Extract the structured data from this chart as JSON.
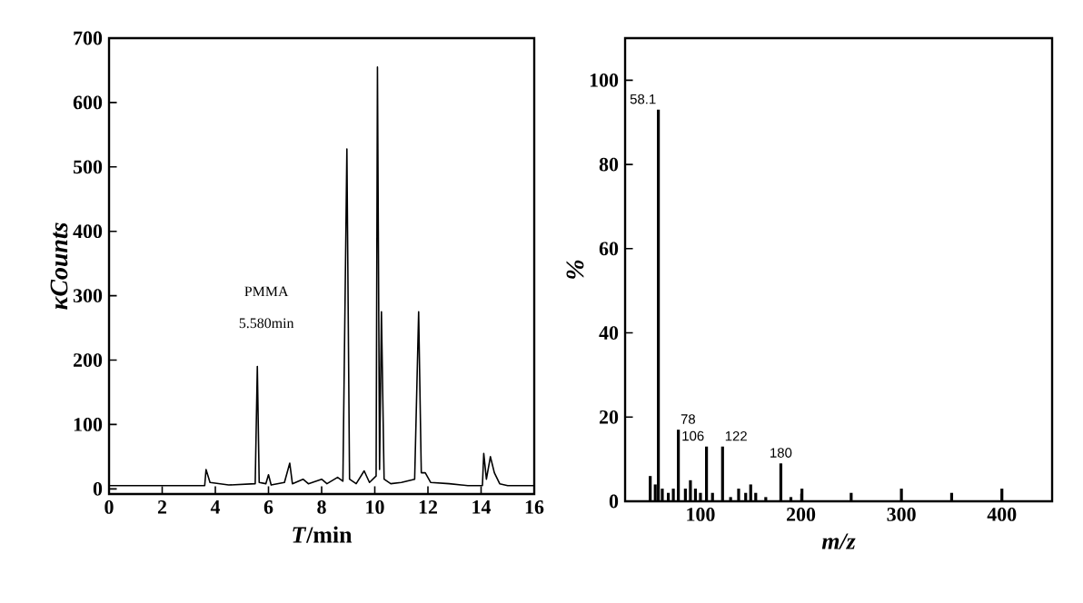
{
  "chart_data": [
    {
      "type": "line",
      "xlabel": "*T*/min",
      "ylabel": "κCounts",
      "color": "#000000",
      "x": [
        0,
        3,
        3.6,
        3.65,
        3.8,
        4.5,
        5.5,
        5.58,
        5.65,
        5.9,
        6.0,
        6.1,
        6.6,
        6.8,
        6.9,
        7.3,
        7.5,
        8.0,
        8.2,
        8.6,
        8.8,
        8.95,
        9.05,
        9.3,
        9.6,
        9.8,
        10.05,
        10.1,
        10.18,
        10.25,
        10.35,
        10.6,
        11.0,
        11.5,
        11.65,
        11.75,
        11.9,
        12.1,
        12.8,
        13.5,
        14.05,
        14.1,
        14.2,
        14.35,
        14.5,
        14.7,
        15,
        16
      ],
      "values": [
        5,
        5,
        5,
        30,
        10,
        6,
        8,
        190,
        10,
        8,
        22,
        6,
        10,
        40,
        8,
        15,
        8,
        15,
        8,
        18,
        12,
        528,
        15,
        8,
        28,
        10,
        20,
        655,
        30,
        275,
        15,
        8,
        10,
        15,
        275,
        25,
        25,
        10,
        8,
        5,
        5,
        55,
        15,
        50,
        25,
        8,
        5,
        5
      ],
      "xlim": [
        0,
        16
      ],
      "ylim": [
        -8,
        700
      ],
      "xticks": [
        0,
        2,
        4,
        6,
        8,
        10,
        12,
        14,
        16
      ],
      "yticks": [
        0,
        100,
        200,
        300,
        400,
        500,
        600,
        700
      ],
      "annotations": [
        "PMMA",
        "5.580min"
      ]
    },
    {
      "type": "bar",
      "xlabel": "m/z",
      "ylabel": "%",
      "color": "#000000",
      "x": [
        50,
        55,
        58.1,
        62,
        68,
        73,
        78,
        85,
        90,
        95,
        100,
        106,
        112,
        122,
        130,
        138,
        145,
        150,
        155,
        165,
        180,
        190,
        201,
        250,
        300,
        350,
        400
      ],
      "values": [
        6,
        4,
        93,
        3,
        2,
        3,
        17,
        3,
        5,
        3,
        2,
        13,
        2,
        13,
        1,
        3,
        2,
        4,
        2,
        1,
        9,
        1,
        3,
        2,
        3,
        2,
        3
      ],
      "xlim": [
        25,
        450
      ],
      "ylim": [
        0,
        110
      ],
      "xticks": [
        100,
        200,
        300,
        400
      ],
      "yticks": [
        0,
        20,
        40,
        60,
        80,
        100
      ],
      "annotations": [
        {
          "text": "58.1",
          "x": 58.1,
          "y": 93
        },
        {
          "text": "78",
          "x": 78,
          "y": 17
        },
        {
          "text": "106",
          "x": 106,
          "y": 13
        },
        {
          "text": "122",
          "x": 122,
          "y": 13
        },
        {
          "text": "180",
          "x": 180,
          "y": 9
        }
      ]
    }
  ]
}
